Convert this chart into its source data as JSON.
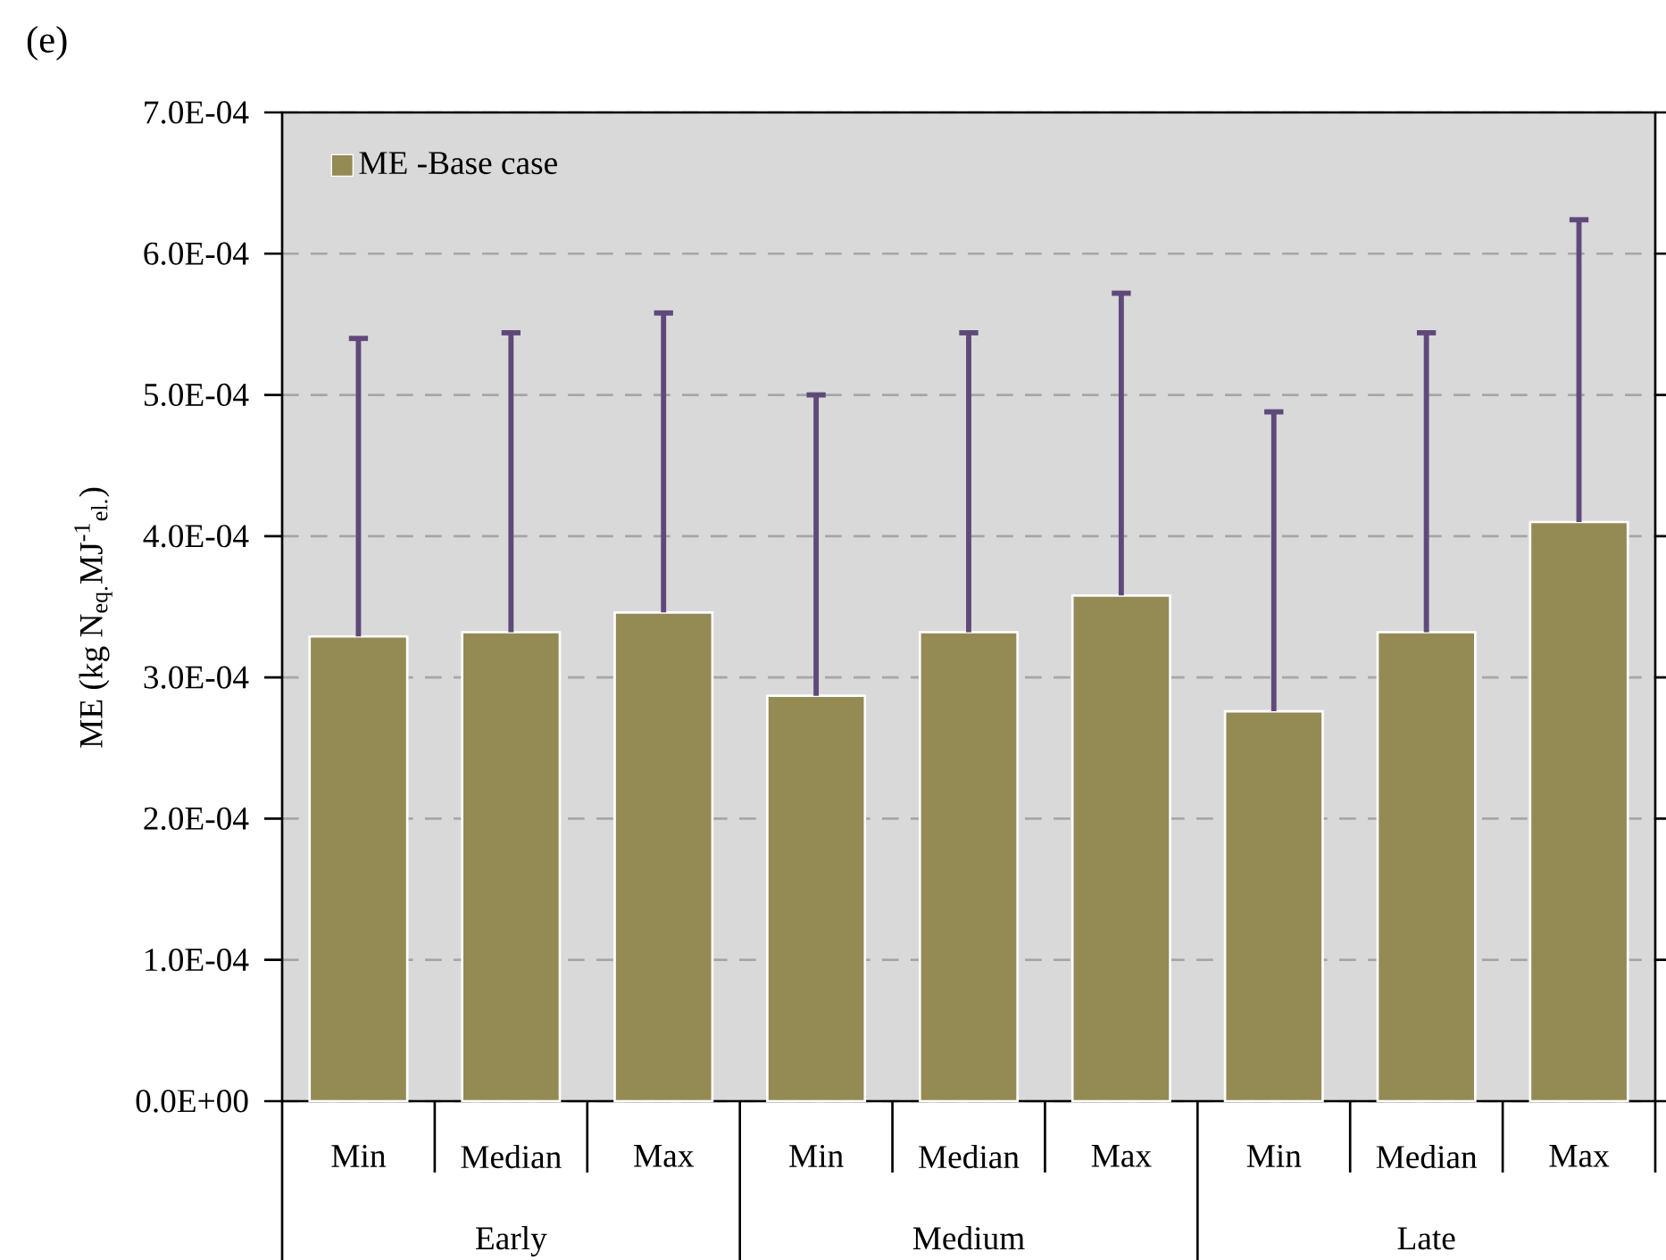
{
  "chart_data": {
    "type": "bar",
    "title": "(e)",
    "ylabel": "ME (kg N$_{eq.}$MJ$^{-1}$$_{el.}$)",
    "categories": [
      "Min",
      "Median",
      "Max",
      "Min",
      "Median",
      "Max",
      "Min",
      "Median",
      "Max"
    ],
    "annotations": [
      "Early",
      "Medium",
      "Late"
    ],
    "series": [
      {
        "name": "ME -Base case",
        "color": "#948a54",
        "values": [
          0.000329,
          0.000332,
          0.000346,
          0.000287,
          0.000332,
          0.000358,
          0.000276,
          0.000332,
          0.00041
        ],
        "errors": [
          [
            0.000329,
            0.00054
          ],
          [
            0.000332,
            0.000544
          ],
          [
            0.000346,
            0.000558
          ],
          [
            0.000287,
            0.0005
          ],
          [
            0.000332,
            0.000544
          ],
          [
            0.000358,
            0.000572
          ],
          [
            0.000276,
            0.000488
          ],
          [
            0.000332,
            0.000544
          ],
          [
            0.00041,
            0.000624
          ]
        ]
      }
    ],
    "ylim": [
      0,
      0.0007
    ],
    "yticks": [
      {
        "value": 0,
        "label": "0.0E+00"
      },
      {
        "value": 0.0001,
        "label": "1.0E-04"
      },
      {
        "value": 0.0002,
        "label": "2.0E-04"
      },
      {
        "value": 0.0003,
        "label": "3.0E-04"
      },
      {
        "value": 0.0004,
        "label": "4.0E-04"
      },
      {
        "value": 0.0005,
        "label": "5.0E-04"
      },
      {
        "value": 0.0006,
        "label": "6.0E-04"
      },
      {
        "value": 0.0007,
        "label": "7.0E-04"
      }
    ],
    "grid": "y",
    "legend": "top left"
  }
}
